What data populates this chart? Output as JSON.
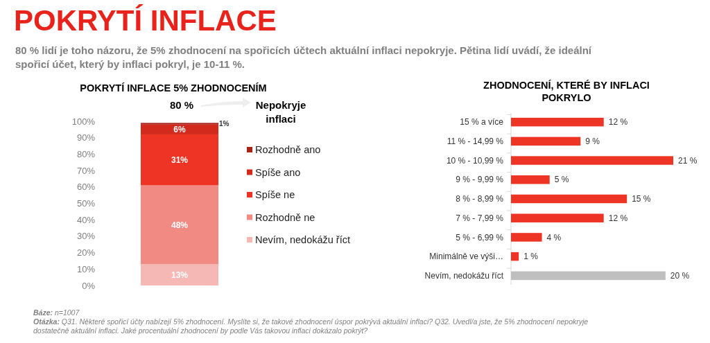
{
  "chart_data": [
    {
      "type": "other",
      "title": "POKRYTÍ INFLACE",
      "subtitle": "80 % lidí je toho názoru, že 5% zhodnocení na spořicích účtech aktuální inflaci nepokryje. Pětina lidí uvádí, že ideální spořicí účet, který by inflaci pokryl, je 10-11 %.",
      "annotations": [
        "Báze: n=1007",
        "Otázka: Q31. Některé spořicí účty nabízejí 5% zhodnocení. Myslíte si, že takové zhodnocení úspor pokrývá aktuální inflaci? Q32. Uvedl/a jste, že 5% zhodnocení nepokryje dostatečně aktuální inflaci. Jaké procentuální zhodnocení by podle Vás takovou inflaci dokázalo pokrýt?"
      ]
    },
    {
      "type": "bar",
      "stacked": true,
      "title": "POKRYTÍ INFLACE 5% ZHODNOCENÍM",
      "categories": [
        null
      ],
      "series": [
        {
          "name": "Nevím, nedokážu říct",
          "color": "#f6b8b5",
          "values": [
            13
          ],
          "value_labels": [
            "13%"
          ]
        },
        {
          "name": "Rozhodně ne",
          "color": "#f28a84",
          "values": [
            48
          ],
          "value_labels": [
            "48%"
          ]
        },
        {
          "name": "Spíše ne",
          "color": "#ee3425",
          "values": [
            31
          ],
          "value_labels": [
            "31%"
          ]
        },
        {
          "name": "Spíše ano",
          "color": "#d32a1e",
          "values": [
            6
          ],
          "value_labels": [
            "6%"
          ]
        },
        {
          "name": "Rozhodně ano",
          "color": "#a8201a",
          "values": [
            1
          ],
          "value_labels": [
            "1%"
          ]
        }
      ],
      "ylim": [
        0,
        100
      ],
      "yticks": [
        {
          "value": 0,
          "label": "0%"
        },
        {
          "value": 10,
          "label": "10%"
        },
        {
          "value": 20,
          "label": "20%"
        },
        {
          "value": 30,
          "label": "30%"
        },
        {
          "value": 40,
          "label": "40%"
        },
        {
          "value": 50,
          "label": "50%"
        },
        {
          "value": 60,
          "label": "60%"
        },
        {
          "value": 70,
          "label": "70%"
        },
        {
          "value": 80,
          "label": "80%"
        },
        {
          "value": 90,
          "label": "90%"
        },
        {
          "value": 100,
          "label": "100%"
        }
      ],
      "legend": "right",
      "grid": false,
      "annotations": [
        "80 %",
        "Nepokryje inflaci"
      ]
    },
    {
      "type": "bar",
      "orientation": "horizontal",
      "title": "ZHODNOCENÍ, KTERÉ BY INFLACI POKRYLO",
      "categories": [
        "15 % a více",
        "11 % - 14,99 %",
        "10 % - 10,99 %",
        "9 % - 9,99 %",
        "8 % - 8,99 %",
        "7 % - 7,99 %",
        "5 % - 6,99 %",
        "Minimálně ve výši…",
        "Nevím, nedokážu říct"
      ],
      "values": [
        12,
        9,
        21,
        5,
        15,
        12,
        4,
        1,
        20
      ],
      "value_labels": [
        "12 %",
        "9 %",
        "21 %",
        "5 %",
        "15 %",
        "12 %",
        "4 %",
        "1 %",
        "20 %"
      ],
      "colors": [
        "#ee3425",
        "#ee3425",
        "#ee3425",
        "#ee3425",
        "#ee3425",
        "#ee3425",
        "#ee3425",
        "#ee3425",
        "#bfbfbf"
      ]
    }
  ]
}
